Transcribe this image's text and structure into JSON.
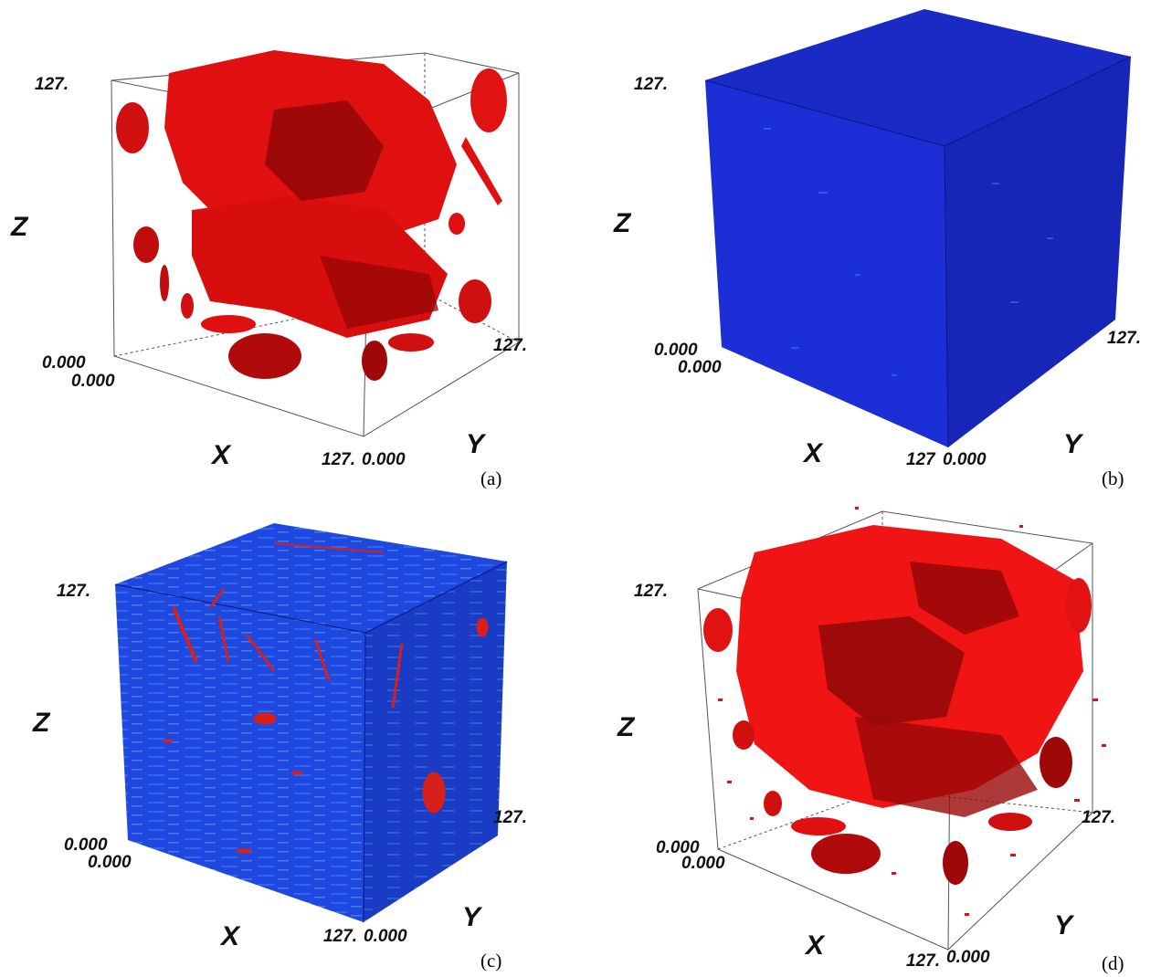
{
  "panels": [
    {
      "caption": "(a)",
      "style": "isosurface",
      "axes": {
        "x": "X",
        "y": "Y",
        "z": "Z"
      },
      "ticks": {
        "z_top": "127.",
        "origin_z": "0.000",
        "origin_x": "0.000",
        "x_end": "127.",
        "y_start": "0.000",
        "y_end": "127."
      },
      "colors": {
        "body": "#e01010",
        "shade": "#8a0606"
      }
    },
    {
      "caption": "(b)",
      "style": "solid",
      "axes": {
        "x": "X",
        "y": "Y",
        "z": "Z"
      },
      "ticks": {
        "z_top": "127.",
        "origin_z": "0.000",
        "origin_x": "0.000",
        "x_end": "127",
        "y_start": "0.000",
        "y_end": "127."
      },
      "colors": {
        "front": "#1c2fd6",
        "side": "#1826b8",
        "top": "#1a2ac4"
      }
    },
    {
      "caption": "(c)",
      "style": "textured",
      "axes": {
        "x": "X",
        "y": "Y",
        "z": "Z"
      },
      "ticks": {
        "z_top": "127.",
        "origin_z": "0.000",
        "origin_x": "0.000",
        "x_end": "127.",
        "y_start": "0.000",
        "y_end": "127."
      },
      "colors": {
        "front": "#1f48e0",
        "side": "#1a3cc4",
        "top": "#1d44d2",
        "inclusion": "#d8201a"
      }
    },
    {
      "caption": "(d)",
      "style": "isosurface",
      "axes": {
        "x": "X",
        "y": "Y",
        "z": "Z"
      },
      "ticks": {
        "z_top": "127.",
        "origin_z": "0.000",
        "origin_x": "0.000",
        "x_end": "127.",
        "y_start": "0.000",
        "y_end": "127."
      },
      "colors": {
        "body": "#f01414",
        "shade": "#7a0505"
      }
    }
  ]
}
